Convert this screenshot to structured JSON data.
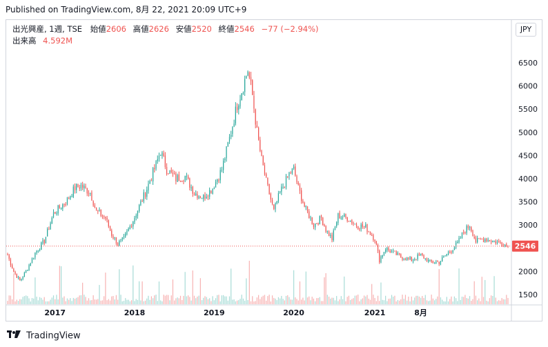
{
  "published": "Published on TradingView.com, 8月 22, 2021 20:09 UTC+9",
  "legend": {
    "symbol": "出光興産, 1週, TSE",
    "open_label": "始値",
    "open": "2606",
    "high_label": "高値",
    "high": "2626",
    "low_label": "安値",
    "low": "2520",
    "close_label": "終値",
    "close": "2546",
    "change": "−77 (−2.94%)",
    "volume_label": "出来高",
    "volume": "4.592M"
  },
  "currency": "JPY",
  "last_price_label": "2546",
  "footer": {
    "brand": "TradingView"
  },
  "colors": {
    "up": "#26a69a",
    "down": "#ef5350",
    "up_volume": "#a9dcd7",
    "down_volume": "#f7b3b3"
  },
  "chart_data": {
    "type": "candlestick",
    "interval": "weekly",
    "y_axis": {
      "ticks": [
        1500,
        2000,
        2500,
        3000,
        3500,
        4000,
        4500,
        5000,
        5500,
        6000,
        6500
      ],
      "position": "right"
    },
    "x_axis": {
      "ticks": [
        "2017",
        "2018",
        "2019",
        "2020",
        "2021",
        "8月"
      ]
    },
    "last_price": 2546,
    "price_anchors": [
      {
        "t": 0,
        "p": 2350
      },
      {
        "t": 4,
        "p": 2000
      },
      {
        "t": 8,
        "p": 1800
      },
      {
        "t": 12,
        "p": 2000
      },
      {
        "t": 18,
        "p": 2400
      },
      {
        "t": 24,
        "p": 2650
      },
      {
        "t": 30,
        "p": 3250
      },
      {
        "t": 38,
        "p": 3500
      },
      {
        "t": 44,
        "p": 3800
      },
      {
        "t": 48,
        "p": 3850
      },
      {
        "t": 54,
        "p": 3700
      },
      {
        "t": 58,
        "p": 3300
      },
      {
        "t": 64,
        "p": 3150
      },
      {
        "t": 68,
        "p": 2800
      },
      {
        "t": 72,
        "p": 2600
      },
      {
        "t": 76,
        "p": 2700
      },
      {
        "t": 82,
        "p": 3100
      },
      {
        "t": 90,
        "p": 3700
      },
      {
        "t": 97,
        "p": 4300
      },
      {
        "t": 100,
        "p": 4600
      },
      {
        "t": 104,
        "p": 4200
      },
      {
        "t": 110,
        "p": 4000
      },
      {
        "t": 116,
        "p": 4050
      },
      {
        "t": 122,
        "p": 3700
      },
      {
        "t": 128,
        "p": 3600
      },
      {
        "t": 134,
        "p": 3800
      },
      {
        "t": 140,
        "p": 4200
      },
      {
        "t": 146,
        "p": 5000
      },
      {
        "t": 150,
        "p": 5600
      },
      {
        "t": 154,
        "p": 6000
      },
      {
        "t": 157,
        "p": 6350
      },
      {
        "t": 160,
        "p": 5800
      },
      {
        "t": 163,
        "p": 5000
      },
      {
        "t": 166,
        "p": 4400
      },
      {
        "t": 170,
        "p": 3800
      },
      {
        "t": 174,
        "p": 3300
      },
      {
        "t": 178,
        "p": 3700
      },
      {
        "t": 184,
        "p": 4100
      },
      {
        "t": 187,
        "p": 4200
      },
      {
        "t": 190,
        "p": 3800
      },
      {
        "t": 194,
        "p": 3400
      },
      {
        "t": 200,
        "p": 3000
      },
      {
        "t": 205,
        "p": 3150
      },
      {
        "t": 208,
        "p": 2900
      },
      {
        "t": 212,
        "p": 2700
      },
      {
        "t": 216,
        "p": 3200
      },
      {
        "t": 222,
        "p": 3150
      },
      {
        "t": 228,
        "p": 3000
      },
      {
        "t": 234,
        "p": 2950
      },
      {
        "t": 240,
        "p": 2700
      },
      {
        "t": 243,
        "p": 2250
      },
      {
        "t": 247,
        "p": 2500
      },
      {
        "t": 252,
        "p": 2400
      },
      {
        "t": 258,
        "p": 2300
      },
      {
        "t": 264,
        "p": 2250
      },
      {
        "t": 270,
        "p": 2350
      },
      {
        "t": 276,
        "p": 2200
      },
      {
        "t": 282,
        "p": 2200
      },
      {
        "t": 288,
        "p": 2400
      },
      {
        "t": 294,
        "p": 2600
      },
      {
        "t": 298,
        "p": 2850
      },
      {
        "t": 302,
        "p": 3000
      },
      {
        "t": 306,
        "p": 2650
      },
      {
        "t": 312,
        "p": 2700
      },
      {
        "t": 318,
        "p": 2650
      },
      {
        "t": 324,
        "p": 2600
      },
      {
        "t": 327,
        "p": 2546
      }
    ],
    "candle_count": 328,
    "x_label_positions": [
      {
        "label": "2017",
        "t": 31
      },
      {
        "label": "2018",
        "t": 83
      },
      {
        "label": "2019",
        "t": 135
      },
      {
        "label": "2020",
        "t": 187
      },
      {
        "label": "2021",
        "t": 240
      },
      {
        "label": "8月",
        "t": 270
      }
    ]
  }
}
